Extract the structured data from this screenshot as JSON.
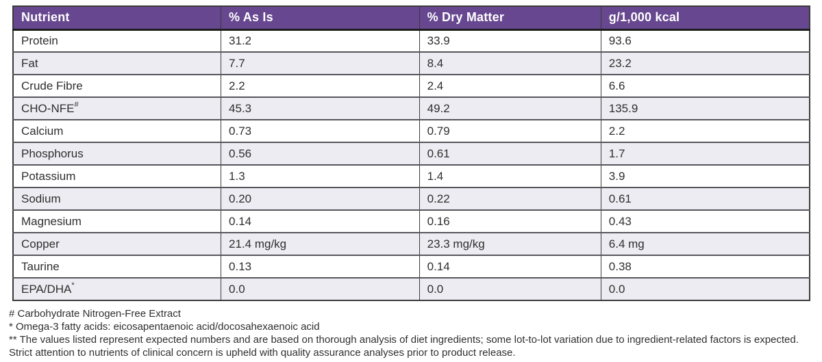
{
  "colors": {
    "header_bg": "#67478F",
    "header_text": "#FFFFFF",
    "stripe_bg": "#EDECF2",
    "body_text": "#2E2E2E",
    "border": "#3A3A3A"
  },
  "table": {
    "headers": [
      "Nutrient",
      "% As Is",
      "% Dry Matter",
      "g/1,000 kcal"
    ],
    "rows": [
      {
        "nutrient": "Protein",
        "sup": "",
        "as_is": "31.2",
        "dry_matter": "33.9",
        "per_1000_kcal": "93.6"
      },
      {
        "nutrient": "Fat",
        "sup": "",
        "as_is": "7.7",
        "dry_matter": "8.4",
        "per_1000_kcal": "23.2"
      },
      {
        "nutrient": "Crude Fibre",
        "sup": "",
        "as_is": "2.2",
        "dry_matter": "2.4",
        "per_1000_kcal": "6.6"
      },
      {
        "nutrient": "CHO-NFE",
        "sup": "#",
        "as_is": "45.3",
        "dry_matter": "49.2",
        "per_1000_kcal": "135.9"
      },
      {
        "nutrient": "Calcium",
        "sup": "",
        "as_is": "0.73",
        "dry_matter": "0.79",
        "per_1000_kcal": "2.2"
      },
      {
        "nutrient": "Phosphorus",
        "sup": "",
        "as_is": "0.56",
        "dry_matter": "0.61",
        "per_1000_kcal": "1.7"
      },
      {
        "nutrient": "Potassium",
        "sup": "",
        "as_is": "1.3",
        "dry_matter": "1.4",
        "per_1000_kcal": "3.9"
      },
      {
        "nutrient": "Sodium",
        "sup": "",
        "as_is": "0.20",
        "dry_matter": "0.22",
        "per_1000_kcal": "0.61"
      },
      {
        "nutrient": "Magnesium",
        "sup": "",
        "as_is": "0.14",
        "dry_matter": "0.16",
        "per_1000_kcal": "0.43"
      },
      {
        "nutrient": "Copper",
        "sup": "",
        "as_is": "21.4 mg/kg",
        "dry_matter": "23.3 mg/kg",
        "per_1000_kcal": "6.4 mg"
      },
      {
        "nutrient": "Taurine",
        "sup": "",
        "as_is": "0.13",
        "dry_matter": "0.14",
        "per_1000_kcal": "0.38"
      },
      {
        "nutrient": "EPA/DHA",
        "sup": "*",
        "as_is": "0.0",
        "dry_matter": "0.0",
        "per_1000_kcal": "0.0"
      }
    ]
  },
  "footnotes": {
    "line1": "# Carbohydrate Nitrogen-Free Extract",
    "line2": "* Omega-3 fatty acids: eicosapentaenoic acid/docosahexaenoic acid",
    "line3": "** The values listed represent expected numbers and are based on thorough analysis of diet ingredients; some lot-to-lot variation due to ingredient-related factors is expected.",
    "line4": "Strict attention to nutrients of clinical concern is upheld with quality assurance analyses prior to product release."
  }
}
